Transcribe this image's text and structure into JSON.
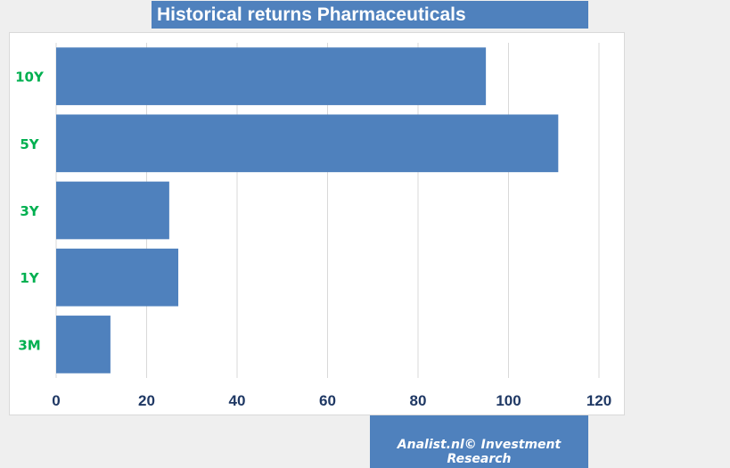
{
  "title": "Historical returns Pharmaceuticals",
  "footer": "Analist.nl© Investment Research",
  "colors": {
    "bar": "#4f81bd",
    "category_label": "#00b050",
    "tick_label": "#1f3864",
    "grid": "#d9d9d9"
  },
  "chart_data": {
    "type": "bar",
    "orientation": "horizontal",
    "categories": [
      "10Y",
      "5Y",
      "3Y",
      "1Y",
      "3M"
    ],
    "values": [
      95,
      111,
      25,
      27,
      12
    ],
    "xlim": [
      0,
      120
    ],
    "xticks": [
      "0",
      "20",
      "40",
      "60",
      "80",
      "100",
      "120"
    ],
    "grid": "vertical"
  }
}
